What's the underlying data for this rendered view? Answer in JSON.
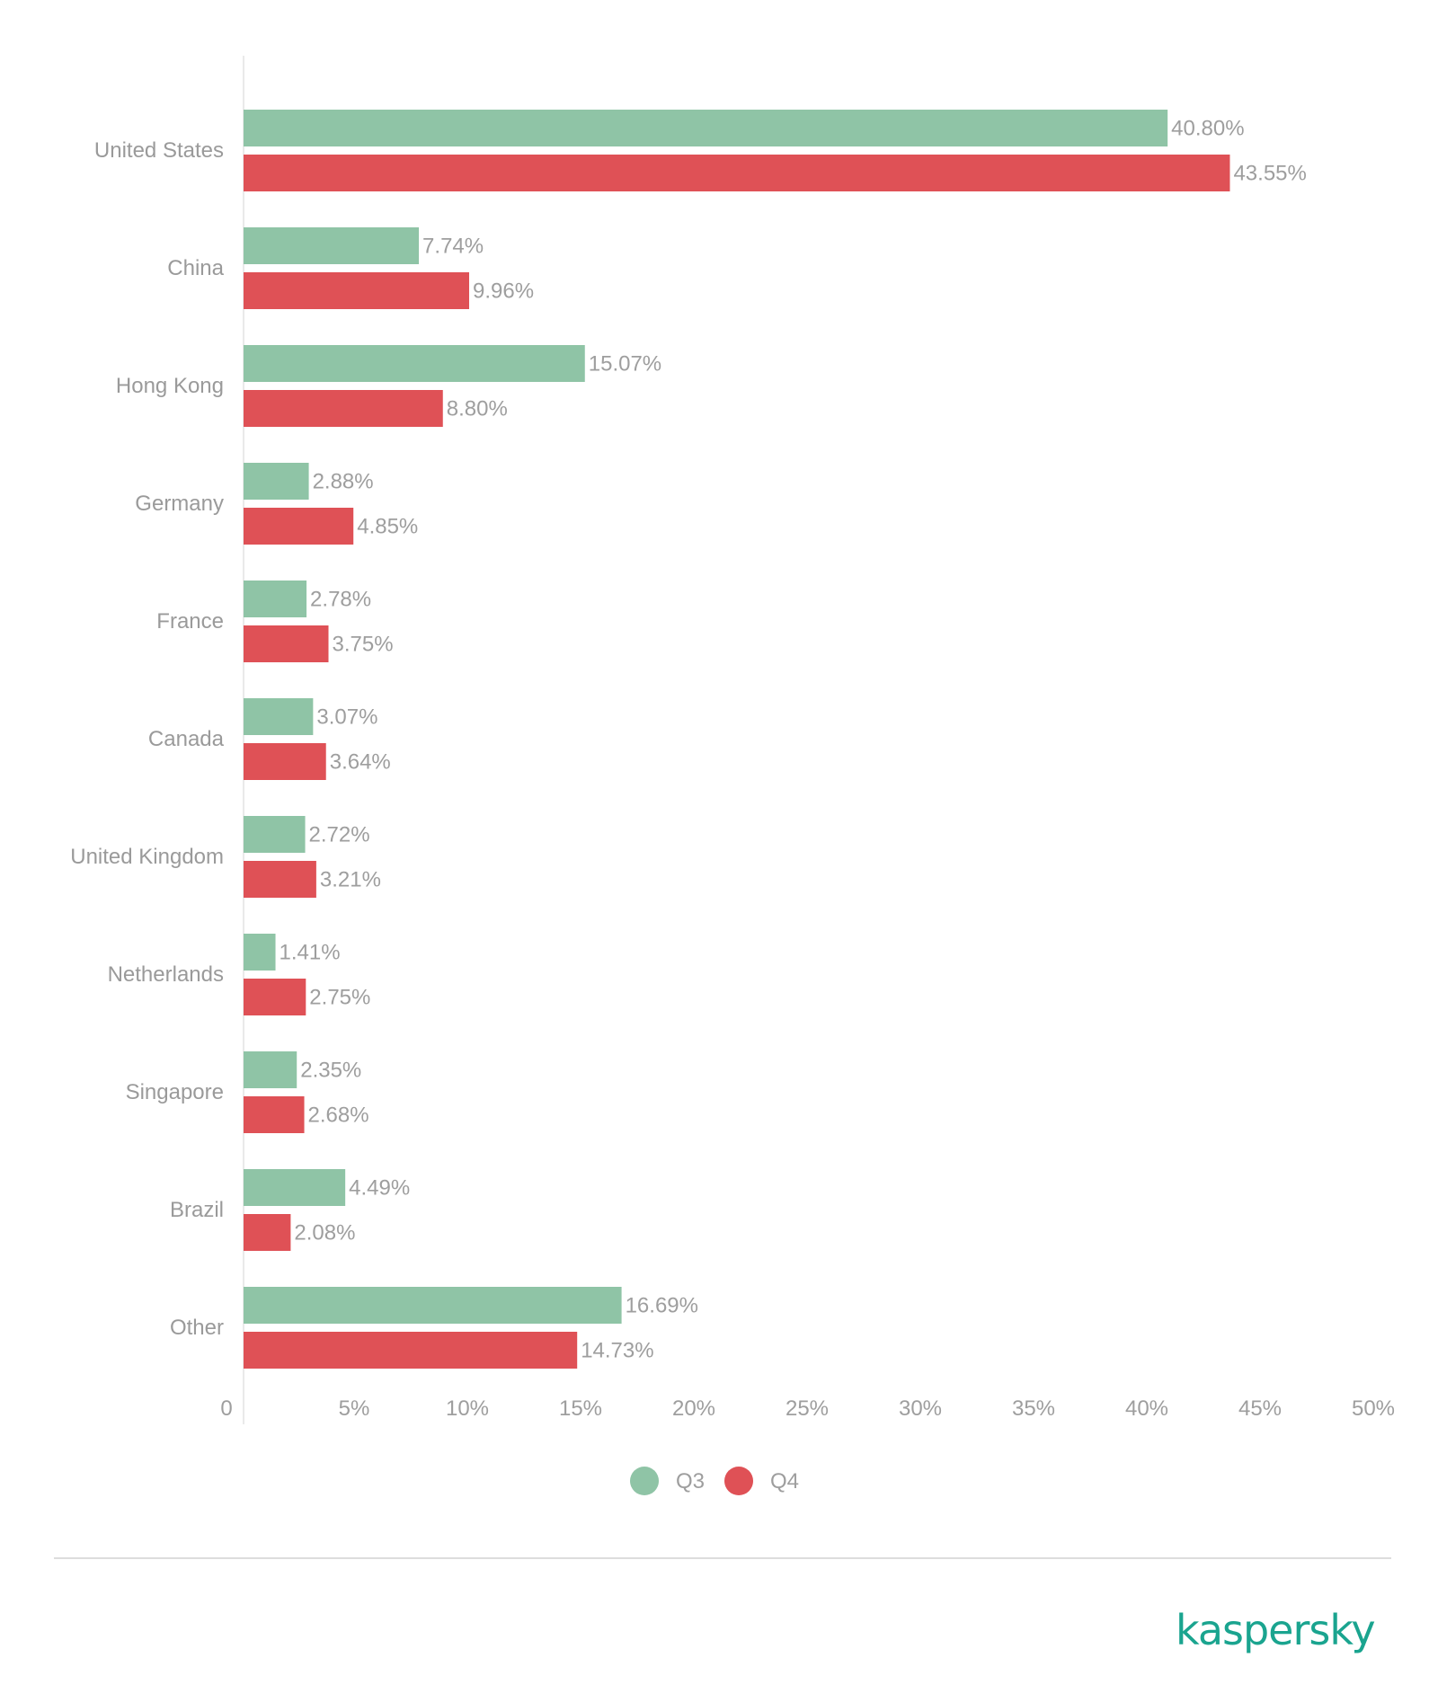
{
  "colors": {
    "q3": "#8fc4a6",
    "q4": "#df5156",
    "brand": "#1aa48f"
  },
  "brand": {
    "logo_text": "kaspersky"
  },
  "chart_data": {
    "type": "bar",
    "orientation": "horizontal",
    "categories": [
      "United States",
      "China",
      "Hong Kong",
      "Germany",
      "France",
      "Canada",
      "United Kingdom",
      "Netherlands",
      "Singapore",
      "Brazil",
      "Other"
    ],
    "series": [
      {
        "name": "Q3",
        "values": [
          40.8,
          7.74,
          15.07,
          2.88,
          2.78,
          3.07,
          2.72,
          1.41,
          2.35,
          4.49,
          16.69
        ],
        "labels": [
          "40.80%",
          "7.74%",
          "15.07%",
          "2.88%",
          "2.78%",
          "3.07%",
          "2.72%",
          "1.41%",
          "2.35%",
          "4.49%",
          "16.69%"
        ]
      },
      {
        "name": "Q4",
        "values": [
          43.55,
          9.96,
          8.8,
          4.85,
          3.75,
          3.64,
          3.21,
          2.75,
          2.68,
          2.08,
          14.73
        ],
        "labels": [
          "43.55%",
          "9.96%",
          "8.80%",
          "4.85%",
          "3.75%",
          "3.64%",
          "3.21%",
          "2.75%",
          "2.68%",
          "2.08%",
          "14.73%"
        ]
      }
    ],
    "xlim": [
      0,
      50
    ],
    "xticks": [
      "0",
      "5%",
      "10%",
      "15%",
      "20%",
      "25%",
      "30%",
      "35%",
      "40%",
      "45%",
      "50%"
    ],
    "legend": "bottom-center",
    "grid": false
  }
}
